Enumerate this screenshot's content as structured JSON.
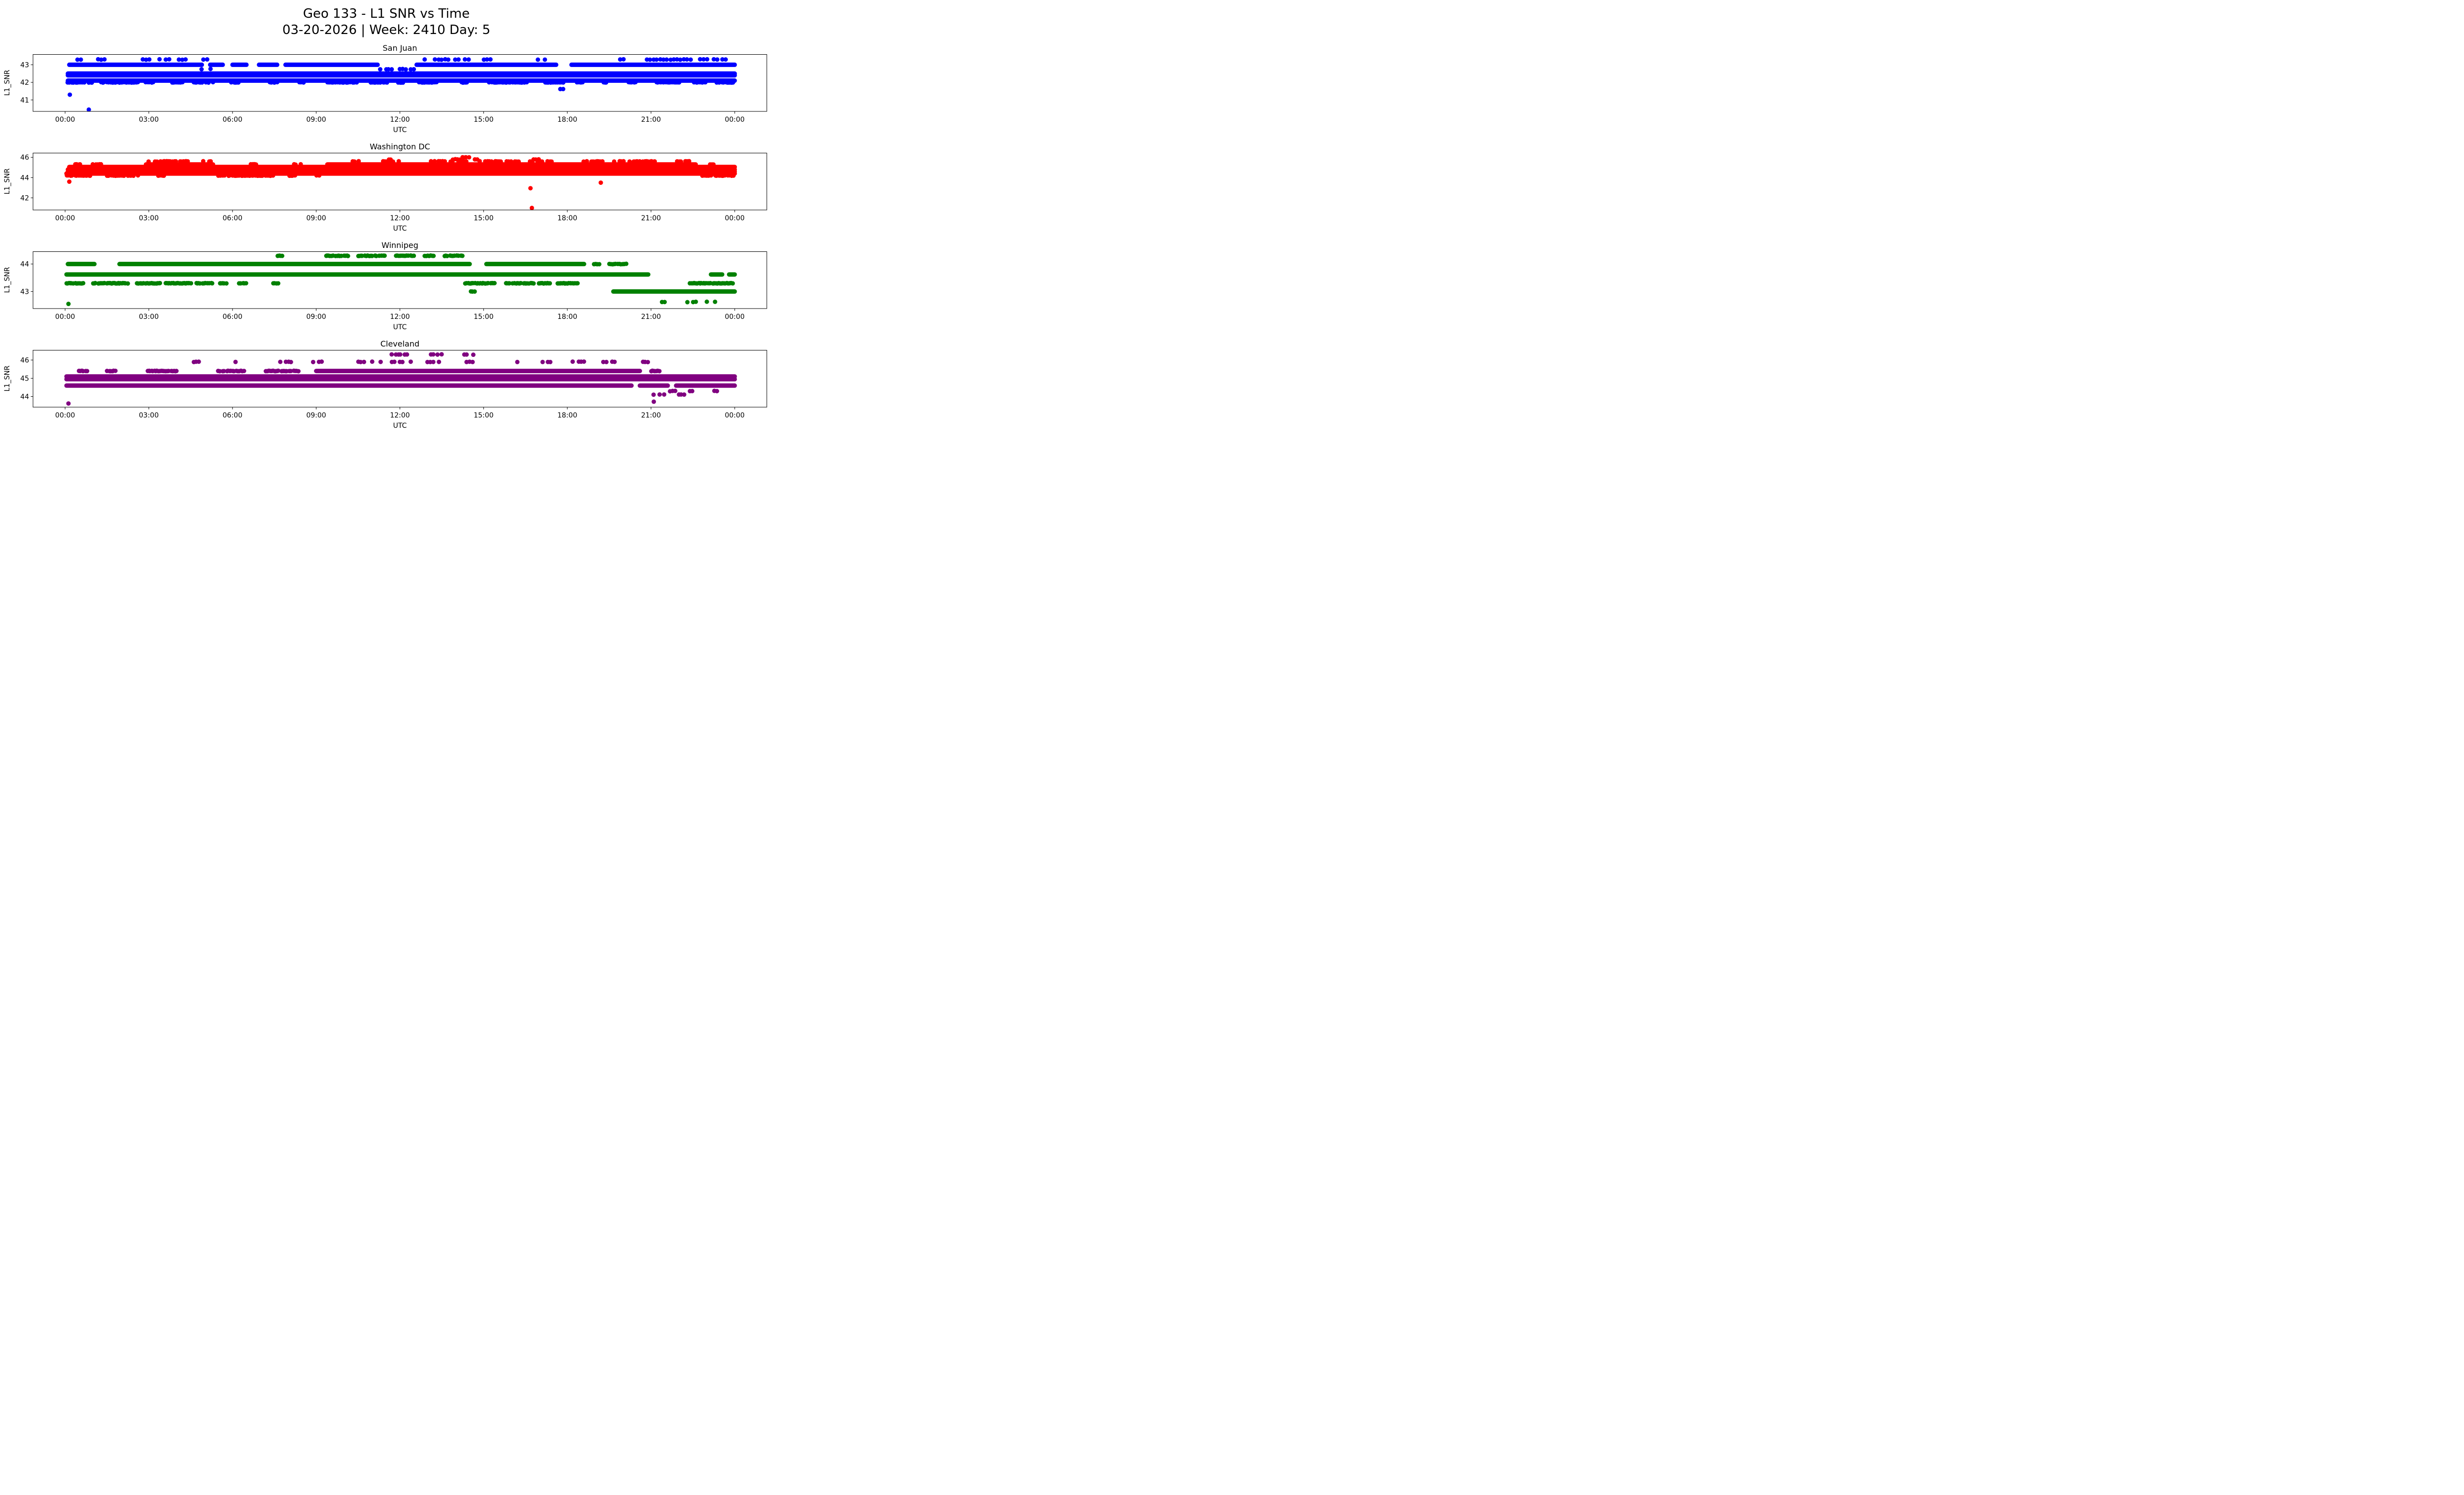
{
  "figure": {
    "title": "Geo 133 - L1 SNR vs Time",
    "subtitle": "03-20-2026 | Week: 2410 Day: 5"
  },
  "axis": {
    "xlabel": "UTC",
    "ylabel": "L1_SNR",
    "xlim": [
      -1.15,
      25.15
    ],
    "xtick_hours": [
      0,
      3,
      6,
      9,
      12,
      15,
      18,
      21,
      24
    ],
    "xtick_labels": [
      "00:00",
      "03:00",
      "06:00",
      "09:00",
      "12:00",
      "15:00",
      "18:00",
      "21:00",
      "00:00"
    ]
  },
  "chart_data": [
    {
      "type": "scatter",
      "title": "San Juan",
      "xlabel": "UTC",
      "ylabel": "L1_SNR",
      "color": "#0000ff",
      "ylim": [
        40.35,
        43.6
      ],
      "yticks": [
        41,
        42,
        43
      ],
      "levels": [
        {
          "y": 43.3,
          "mode": "dots",
          "dt": 0.12,
          "p": 0.6,
          "seg": [
            [
              0.45,
              0.62
            ],
            [
              1.05,
              1.5
            ],
            [
              2.3,
              3.1
            ],
            [
              3.25,
              4.45
            ],
            [
              4.85,
              5.1
            ],
            [
              8.55,
              8.8
            ],
            [
              12.9,
              14.7
            ],
            [
              15.0,
              15.3
            ],
            [
              16.95,
              17.2
            ],
            [
              19.9,
              20.2
            ],
            [
              20.85,
              23.4
            ],
            [
              23.55,
              23.8
            ]
          ]
        },
        {
          "y": 43.0,
          "mode": "line",
          "seg": [
            [
              0.15,
              4.9
            ],
            [
              5.2,
              5.65
            ],
            [
              6.0,
              6.5
            ],
            [
              6.95,
              7.6
            ],
            [
              7.9,
              11.2
            ],
            [
              12.6,
              17.6
            ],
            [
              18.15,
              24.0
            ]
          ]
        },
        {
          "y": 42.75,
          "mode": "dots",
          "dt": 0.1,
          "p": 0.6,
          "seg": [
            [
              4.9,
              5.2
            ],
            [
              11.2,
              12.65
            ]
          ]
        },
        {
          "y": 42.5,
          "mode": "line",
          "seg": [
            [
              0.1,
              24.0
            ]
          ]
        },
        {
          "y": 42.4,
          "mode": "line",
          "seg": [
            [
              0.1,
              24.0
            ]
          ]
        },
        {
          "y": 42.1,
          "mode": "line",
          "seg": [
            [
              0.1,
              24.0
            ]
          ]
        },
        {
          "y": 42.0,
          "mode": "dots",
          "dt": 0.05,
          "p": 0.85,
          "seg": [
            [
              0.1,
              1.0
            ],
            [
              1.3,
              2.6
            ],
            [
              2.9,
              3.15
            ],
            [
              3.85,
              4.2
            ],
            [
              4.6,
              5.3
            ],
            [
              5.9,
              6.2
            ],
            [
              7.35,
              7.6
            ],
            [
              8.4,
              8.65
            ],
            [
              9.4,
              10.5
            ],
            [
              10.95,
              11.6
            ],
            [
              11.95,
              12.2
            ],
            [
              12.7,
              13.4
            ],
            [
              14.2,
              14.5
            ],
            [
              15.2,
              16.6
            ],
            [
              17.2,
              17.9
            ],
            [
              18.35,
              18.6
            ],
            [
              19.2,
              19.5
            ],
            [
              20.2,
              20.5
            ],
            [
              21.2,
              22.1
            ],
            [
              22.55,
              23.0
            ],
            [
              23.3,
              24.0
            ]
          ]
        }
      ],
      "outliers": [
        [
          0.17,
          41.3
        ],
        [
          0.85,
          40.45
        ],
        [
          17.75,
          41.62
        ],
        [
          17.85,
          41.62
        ]
      ]
    },
    {
      "type": "scatter",
      "title": "Washington DC",
      "xlabel": "UTC",
      "ylabel": "L1_SNR",
      "color": "#ff0000",
      "ylim": [
        40.8,
        46.45
      ],
      "yticks": [
        42,
        44,
        46
      ],
      "levels": [
        {
          "y": 46.0,
          "mode": "dots",
          "dt": 0.06,
          "p": 0.8,
          "seg": [
            [
              14.25,
              14.55
            ]
          ]
        },
        {
          "y": 45.8,
          "mode": "dots",
          "dt": 0.08,
          "p": 0.7,
          "seg": [
            [
              11.6,
              11.78
            ],
            [
              13.9,
              14.2
            ],
            [
              14.6,
              14.9
            ],
            [
              16.8,
              17.05
            ]
          ]
        },
        {
          "y": 45.6,
          "mode": "dots",
          "dt": 0.07,
          "p": 0.7,
          "seg": [
            [
              3.0,
              4.6
            ],
            [
              4.95,
              5.3
            ],
            [
              10.3,
              10.55
            ],
            [
              11.4,
              12.05
            ],
            [
              12.9,
              16.3
            ],
            [
              16.6,
              17.45
            ],
            [
              18.5,
              19.3
            ],
            [
              19.6,
              21.2
            ],
            [
              21.8,
              22.4
            ]
          ]
        },
        {
          "y": 45.3,
          "mode": "line",
          "seg": [
            [
              2.9,
              5.3
            ],
            [
              9.4,
              22.6
            ]
          ]
        },
        {
          "y": 45.3,
          "mode": "dots",
          "dt": 0.06,
          "p": 0.8,
          "seg": [
            [
              0.3,
              0.55
            ],
            [
              1.0,
              1.35
            ],
            [
              6.6,
              6.85
            ],
            [
              8.2,
              8.45
            ],
            [
              23.0,
              23.35
            ]
          ]
        },
        {
          "y": 45.05,
          "mode": "line",
          "seg": [
            [
              0.15,
              24.0
            ]
          ]
        },
        {
          "y": 44.8,
          "mode": "line",
          "seg": [
            [
              0.1,
              24.0
            ]
          ]
        },
        {
          "y": 44.6,
          "mode": "line",
          "seg": [
            [
              0.1,
              24.0
            ]
          ]
        },
        {
          "y": 44.4,
          "mode": "line",
          "seg": [
            [
              0.05,
              24.0
            ]
          ]
        },
        {
          "y": 44.2,
          "mode": "dots",
          "dt": 0.05,
          "p": 0.85,
          "seg": [
            [
              0.05,
              0.95
            ],
            [
              1.5,
              2.6
            ],
            [
              3.35,
              3.6
            ],
            [
              5.5,
              7.5
            ],
            [
              8.05,
              8.3
            ],
            [
              9.0,
              9.2
            ],
            [
              22.8,
              24.0
            ]
          ]
        }
      ],
      "outliers": [
        [
          0.15,
          43.6
        ],
        [
          16.68,
          42.95
        ],
        [
          16.73,
          41.0
        ],
        [
          19.2,
          43.5
        ]
      ]
    },
    {
      "type": "scatter",
      "title": "Winnipeg",
      "xlabel": "UTC",
      "ylabel": "L1_SNR",
      "color": "#008000",
      "ylim": [
        42.38,
        44.46
      ],
      "yticks": [
        43,
        44
      ],
      "levels": [
        {
          "y": 44.3,
          "mode": "dots",
          "dt": 0.05,
          "p": 0.85,
          "seg": [
            [
              7.62,
              7.78
            ],
            [
              9.3,
              10.2
            ],
            [
              10.5,
              11.5
            ],
            [
              11.8,
              12.6
            ],
            [
              12.9,
              13.3
            ],
            [
              13.6,
              14.3
            ]
          ]
        },
        {
          "y": 44.0,
          "mode": "line",
          "seg": [
            [
              0.1,
              1.05
            ],
            [
              1.95,
              14.5
            ],
            [
              15.1,
              18.6
            ]
          ]
        },
        {
          "y": 44.0,
          "mode": "dots",
          "dt": 0.06,
          "p": 0.75,
          "seg": [
            [
              18.9,
              19.15
            ],
            [
              19.5,
              20.15
            ]
          ]
        },
        {
          "y": 43.62,
          "mode": "line",
          "seg": [
            [
              0.05,
              20.9
            ],
            [
              23.15,
              23.55
            ],
            [
              23.8,
              24.0
            ]
          ]
        },
        {
          "y": 43.3,
          "mode": "dots",
          "dt": 0.045,
          "p": 0.9,
          "seg": [
            [
              0.05,
              0.65
            ],
            [
              1.0,
              2.3
            ],
            [
              2.5,
              3.4
            ],
            [
              3.6,
              4.5
            ],
            [
              4.7,
              5.3
            ],
            [
              5.55,
              5.8
            ],
            [
              6.25,
              6.5
            ],
            [
              7.45,
              7.65
            ],
            [
              14.35,
              15.4
            ],
            [
              15.8,
              17.4
            ],
            [
              17.6,
              18.4
            ],
            [
              22.4,
              24.0
            ]
          ]
        },
        {
          "y": 43.0,
          "mode": "line",
          "seg": [
            [
              19.65,
              24.0
            ]
          ]
        },
        {
          "y": 43.0,
          "mode": "dots",
          "dt": 0.06,
          "p": 0.9,
          "seg": [
            [
              14.55,
              14.7
            ]
          ]
        },
        {
          "y": 42.62,
          "mode": "dots",
          "dt": 0.1,
          "p": 0.55,
          "seg": [
            [
              21.3,
              21.55
            ],
            [
              22.3,
              23.4
            ]
          ]
        }
      ],
      "outliers": [
        [
          0.12,
          42.55
        ]
      ]
    },
    {
      "type": "scatter",
      "title": "Cleveland",
      "xlabel": "UTC",
      "ylabel": "L1_SNR",
      "color": "#800080",
      "ylim": [
        43.42,
        46.55
      ],
      "yticks": [
        44,
        45,
        46
      ],
      "levels": [
        {
          "y": 46.3,
          "mode": "dots",
          "dt": 0.08,
          "p": 0.7,
          "seg": [
            [
              11.7,
              12.3
            ],
            [
              13.1,
              13.5
            ],
            [
              14.3,
              14.65
            ]
          ]
        },
        {
          "y": 45.9,
          "mode": "dots",
          "dt": 0.1,
          "p": 0.6,
          "seg": [
            [
              4.6,
              4.85
            ],
            [
              5.9,
              6.2
            ],
            [
              7.6,
              8.2
            ],
            [
              8.9,
              9.2
            ],
            [
              10.3,
              11.3
            ],
            [
              11.6,
              12.6
            ],
            [
              13.0,
              13.45
            ],
            [
              14.4,
              14.95
            ],
            [
              16.2,
              16.55
            ],
            [
              17.0,
              17.45
            ],
            [
              18.2,
              18.75
            ],
            [
              19.2,
              19.75
            ],
            [
              20.7,
              21.05
            ]
          ]
        },
        {
          "y": 45.4,
          "mode": "line",
          "seg": [
            [
              9.0,
              20.6
            ]
          ]
        },
        {
          "y": 45.4,
          "mode": "dots",
          "dt": 0.05,
          "p": 0.85,
          "seg": [
            [
              0.5,
              0.85
            ],
            [
              1.5,
              1.85
            ],
            [
              2.9,
              4.0
            ],
            [
              5.5,
              6.4
            ],
            [
              7.2,
              8.4
            ],
            [
              21.0,
              21.35
            ]
          ]
        },
        {
          "y": 45.1,
          "mode": "line",
          "seg": [
            [
              0.05,
              24.0
            ]
          ]
        },
        {
          "y": 44.95,
          "mode": "line",
          "seg": [
            [
              0.05,
              24.0
            ]
          ]
        },
        {
          "y": 44.6,
          "mode": "line",
          "seg": [
            [
              0.05,
              20.3
            ],
            [
              20.6,
              21.6
            ],
            [
              21.9,
              24.0
            ]
          ]
        },
        {
          "y": 44.3,
          "mode": "dots",
          "dt": 0.09,
          "p": 0.6,
          "seg": [
            [
              20.35,
              20.6
            ],
            [
              21.6,
              21.95
            ],
            [
              22.4,
              22.65
            ],
            [
              23.1,
              23.45
            ]
          ]
        },
        {
          "y": 44.1,
          "mode": "dots",
          "dt": 0.09,
          "p": 0.6,
          "seg": [
            [
              20.9,
              21.15
            ],
            [
              21.3,
              21.55
            ],
            [
              22.0,
              22.25
            ]
          ]
        }
      ],
      "outliers": [
        [
          0.12,
          43.62
        ],
        [
          21.1,
          43.72
        ]
      ]
    }
  ]
}
